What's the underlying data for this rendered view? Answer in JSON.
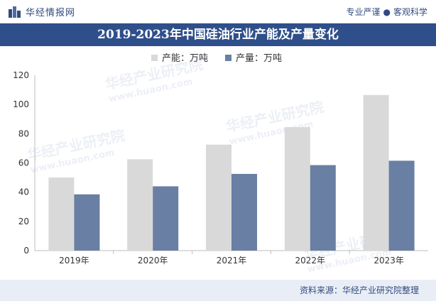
{
  "header": {
    "brand": "华经情报网",
    "slogan_left": "专业严谨",
    "slogan_right": "客观科学"
  },
  "title": "2019-2023年中国硅油行业产能及产量变化",
  "source": "资料来源：华经产业研究院整理",
  "watermark": {
    "cn": "华经产业研究院",
    "url": "www.huaon.com"
  },
  "colors": {
    "capacity": "#d9d9d9",
    "output": "#697fa3",
    "title_band": "#2f4f8a"
  },
  "chart_data": {
    "type": "bar",
    "categories": [
      "2019年",
      "2020年",
      "2021年",
      "2022年",
      "2023年"
    ],
    "series": [
      {
        "name": "产能：万吨",
        "values": [
          50,
          62.5,
          72.5,
          84.5,
          106.5
        ]
      },
      {
        "name": "产量：万吨",
        "values": [
          38.5,
          44,
          52.5,
          58.5,
          61.5
        ]
      }
    ],
    "ylim": [
      0,
      120
    ],
    "yticks": [
      0,
      20,
      40,
      60,
      80,
      100,
      120
    ],
    "legend": "top-center",
    "grid": false
  }
}
